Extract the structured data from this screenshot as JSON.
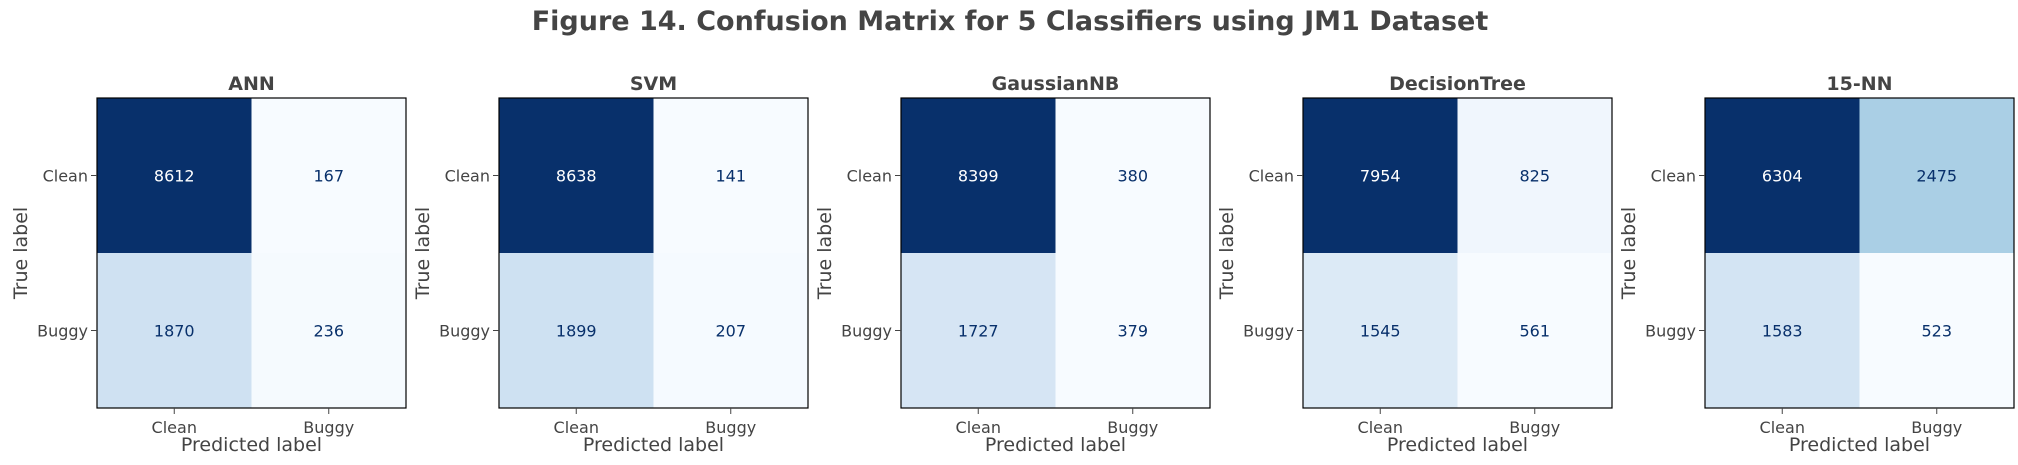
{
  "figure": {
    "title": "Figure 14. Confusion Matrix for 5 Classifiers using JM1 Dataset"
  },
  "colors": {
    "text": "#444444",
    "frame": "#000000",
    "colormap": "Blues",
    "dark_text": "#08306b",
    "light_text": "#ffffff"
  },
  "chart_data": [
    {
      "type": "heatmap",
      "title": "ANN",
      "xlabel": "Predicted label",
      "ylabel": "True label",
      "x_tick_labels": [
        "Clean",
        "Buggy"
      ],
      "y_tick_labels": [
        "Clean",
        "Buggy"
      ],
      "matrix": [
        [
          8612,
          167
        ],
        [
          1870,
          236
        ]
      ]
    },
    {
      "type": "heatmap",
      "title": "SVM",
      "xlabel": "Predicted label",
      "ylabel": "True label",
      "x_tick_labels": [
        "Clean",
        "Buggy"
      ],
      "y_tick_labels": [
        "Clean",
        "Buggy"
      ],
      "matrix": [
        [
          8638,
          141
        ],
        [
          1899,
          207
        ]
      ]
    },
    {
      "type": "heatmap",
      "title": "GaussianNB",
      "xlabel": "Predicted label",
      "ylabel": "True label",
      "x_tick_labels": [
        "Clean",
        "Buggy"
      ],
      "y_tick_labels": [
        "Clean",
        "Buggy"
      ],
      "matrix": [
        [
          8399,
          380
        ],
        [
          1727,
          379
        ]
      ]
    },
    {
      "type": "heatmap",
      "title": "DecisionTree",
      "xlabel": "Predicted label",
      "ylabel": "True label",
      "x_tick_labels": [
        "Clean",
        "Buggy"
      ],
      "y_tick_labels": [
        "Clean",
        "Buggy"
      ],
      "matrix": [
        [
          7954,
          825
        ],
        [
          1545,
          561
        ]
      ]
    },
    {
      "type": "heatmap",
      "title": "15-NN",
      "xlabel": "Predicted label",
      "ylabel": "True label",
      "x_tick_labels": [
        "Clean",
        "Buggy"
      ],
      "y_tick_labels": [
        "Clean",
        "Buggy"
      ],
      "matrix": [
        [
          6304,
          2475
        ],
        [
          1583,
          523
        ]
      ]
    }
  ]
}
